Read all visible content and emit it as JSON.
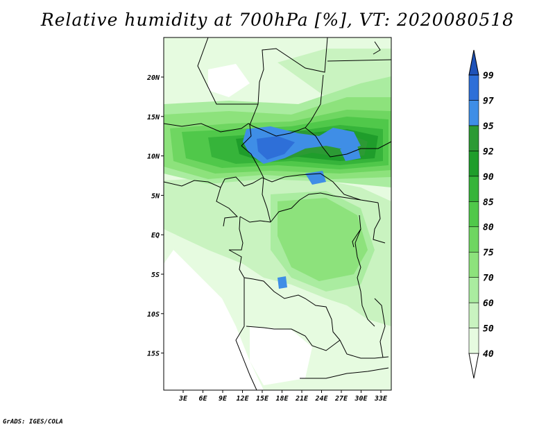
{
  "title": "Relative humidity at 700hPa [%], VT: 2020080518",
  "credit": "GrADS: IGES/COLA",
  "map": {
    "type": "filled-contour",
    "variable": "Relative humidity at 700hPa",
    "units": "%",
    "valid_time": "2020080518",
    "lon_ticks": [
      "3E",
      "6E",
      "9E",
      "12E",
      "15E",
      "18E",
      "21E",
      "24E",
      "27E",
      "30E",
      "33E"
    ],
    "lat_ticks": [
      "20N",
      "15N",
      "10N",
      "5N",
      "EQ",
      "5S",
      "10S",
      "15S"
    ]
  },
  "colorbar": {
    "levels": [
      "40",
      "50",
      "60",
      "70",
      "75",
      "80",
      "85",
      "90",
      "92",
      "95",
      "97",
      "99"
    ],
    "colors": [
      "#ffffff",
      "#e6fbe0",
      "#c9f3c0",
      "#aaeca0",
      "#8de27c",
      "#6fd661",
      "#50c84a",
      "#36b43a",
      "#1f9d2b",
      "#2c9a34",
      "#3f8ee6",
      "#2e6fd8",
      "#1e52b8"
    ]
  }
}
